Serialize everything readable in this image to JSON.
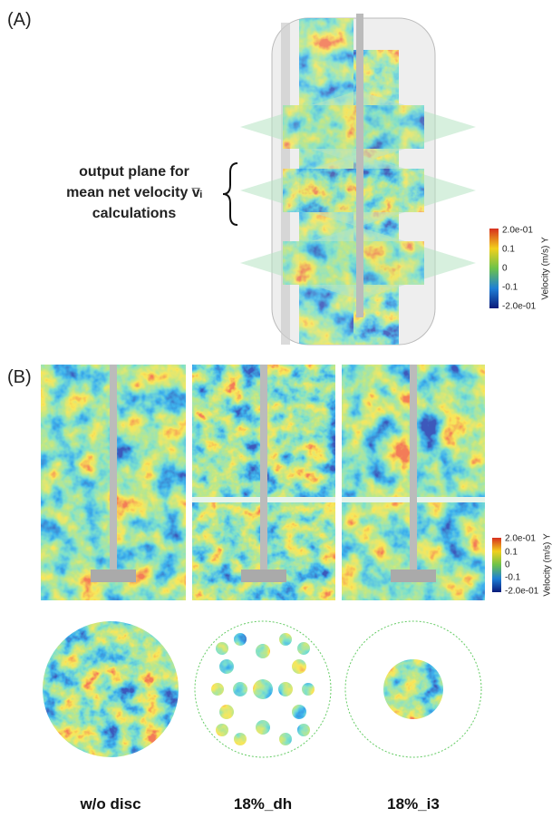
{
  "panel_a": {
    "label": "(A)",
    "annotation": [
      "output plane for",
      "mean net velocity v̅ᵢ",
      "calculations"
    ],
    "colorbar": {
      "title": "Velocity (m/s) Y",
      "ticks": [
        "2.0e-01",
        "0.1",
        "0",
        "-0.1",
        "-2.0e-01"
      ]
    }
  },
  "panel_b": {
    "label": "(B)",
    "colorbar": {
      "title": "Velocity (m/s) Y",
      "ticks": [
        "2.0e-01",
        "0.1",
        "0",
        "-0.1",
        "-2.0e-01"
      ]
    },
    "cases": [
      "w/o disc",
      "18%_dh",
      "18%_i3"
    ]
  }
}
